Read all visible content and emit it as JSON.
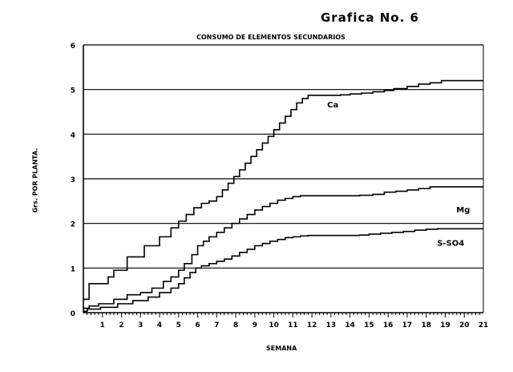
{
  "figure_label": "Grafica No. 6",
  "chart_data": {
    "type": "line",
    "title": "CONSUMO DE ELEMENTOS SECUNDARIOS",
    "xlabel": "SEMANA",
    "ylabel": "Grs. POR PLANTA.",
    "xlim": [
      0,
      21
    ],
    "ylim": [
      0,
      6
    ],
    "x_ticks": [
      1,
      2,
      3,
      4,
      5,
      6,
      7,
      8,
      9,
      10,
      11,
      12,
      13,
      14,
      15,
      16,
      17,
      18,
      19,
      20,
      21
    ],
    "y_ticks": [
      0,
      1,
      2,
      3,
      4,
      5,
      6
    ],
    "grid": "horizontal",
    "step": true,
    "series": [
      {
        "name": "Ca",
        "x": [
          0,
          0.3,
          1.3,
          1.6,
          2.3,
          2.6,
          3.2,
          4.0,
          4.6,
          5.0,
          5.4,
          5.8,
          6.2,
          6.6,
          7.0,
          7.3,
          7.6,
          7.9,
          8.2,
          8.5,
          8.8,
          9.1,
          9.4,
          9.7,
          10.0,
          10.3,
          10.6,
          10.9,
          11.2,
          11.5,
          11.8,
          13.5,
          14.0,
          14.6,
          15.2,
          15.8,
          16.3,
          17.0,
          17.6,
          18.2,
          18.8,
          21
        ],
        "y": [
          0.3,
          0.65,
          0.8,
          0.95,
          1.25,
          1.25,
          1.5,
          1.7,
          1.9,
          2.05,
          2.2,
          2.35,
          2.45,
          2.5,
          2.6,
          2.75,
          2.9,
          3.05,
          3.2,
          3.35,
          3.5,
          3.65,
          3.8,
          3.95,
          4.1,
          4.25,
          4.4,
          4.55,
          4.7,
          4.8,
          4.87,
          4.88,
          4.9,
          4.92,
          4.95,
          4.98,
          5.02,
          5.07,
          5.12,
          5.15,
          5.2,
          5.2
        ]
      },
      {
        "name": "Mg",
        "x": [
          0,
          0.3,
          0.8,
          1.6,
          2.3,
          3.0,
          3.6,
          4.2,
          4.6,
          5.0,
          5.3,
          5.7,
          6.0,
          6.3,
          6.6,
          7.0,
          7.4,
          7.8,
          8.2,
          8.6,
          9.0,
          9.4,
          9.8,
          10.2,
          10.6,
          11.0,
          11.4,
          11.8,
          12.5,
          13.5,
          14.5,
          15.2,
          15.8,
          16.4,
          17.0,
          17.6,
          18.2,
          21
        ],
        "y": [
          0.1,
          0.15,
          0.2,
          0.3,
          0.4,
          0.45,
          0.55,
          0.7,
          0.8,
          0.95,
          1.1,
          1.3,
          1.5,
          1.6,
          1.7,
          1.8,
          1.9,
          2.0,
          2.1,
          2.2,
          2.3,
          2.38,
          2.45,
          2.52,
          2.56,
          2.6,
          2.62,
          2.62,
          2.62,
          2.62,
          2.63,
          2.65,
          2.7,
          2.72,
          2.75,
          2.78,
          2.82,
          2.82
        ]
      },
      {
        "name": "S-SO4",
        "x": [
          0,
          0.2,
          0.9,
          1.8,
          2.6,
          3.4,
          4.0,
          4.6,
          5.0,
          5.3,
          5.6,
          5.9,
          6.2,
          6.6,
          7.0,
          7.4,
          7.8,
          8.2,
          8.6,
          9.0,
          9.4,
          9.8,
          10.2,
          10.6,
          11.0,
          11.4,
          11.8,
          12.5,
          13.5,
          14.5,
          15.0,
          15.6,
          16.2,
          16.8,
          17.4,
          18.0,
          18.6,
          21
        ],
        "y": [
          0.03,
          0.08,
          0.12,
          0.2,
          0.27,
          0.35,
          0.45,
          0.55,
          0.65,
          0.78,
          0.9,
          1.0,
          1.05,
          1.1,
          1.15,
          1.2,
          1.27,
          1.35,
          1.42,
          1.5,
          1.55,
          1.6,
          1.64,
          1.68,
          1.7,
          1.72,
          1.73,
          1.73,
          1.73,
          1.74,
          1.76,
          1.78,
          1.8,
          1.82,
          1.85,
          1.87,
          1.88,
          1.88
        ]
      }
    ],
    "series_label_positions": "right of each curve"
  }
}
